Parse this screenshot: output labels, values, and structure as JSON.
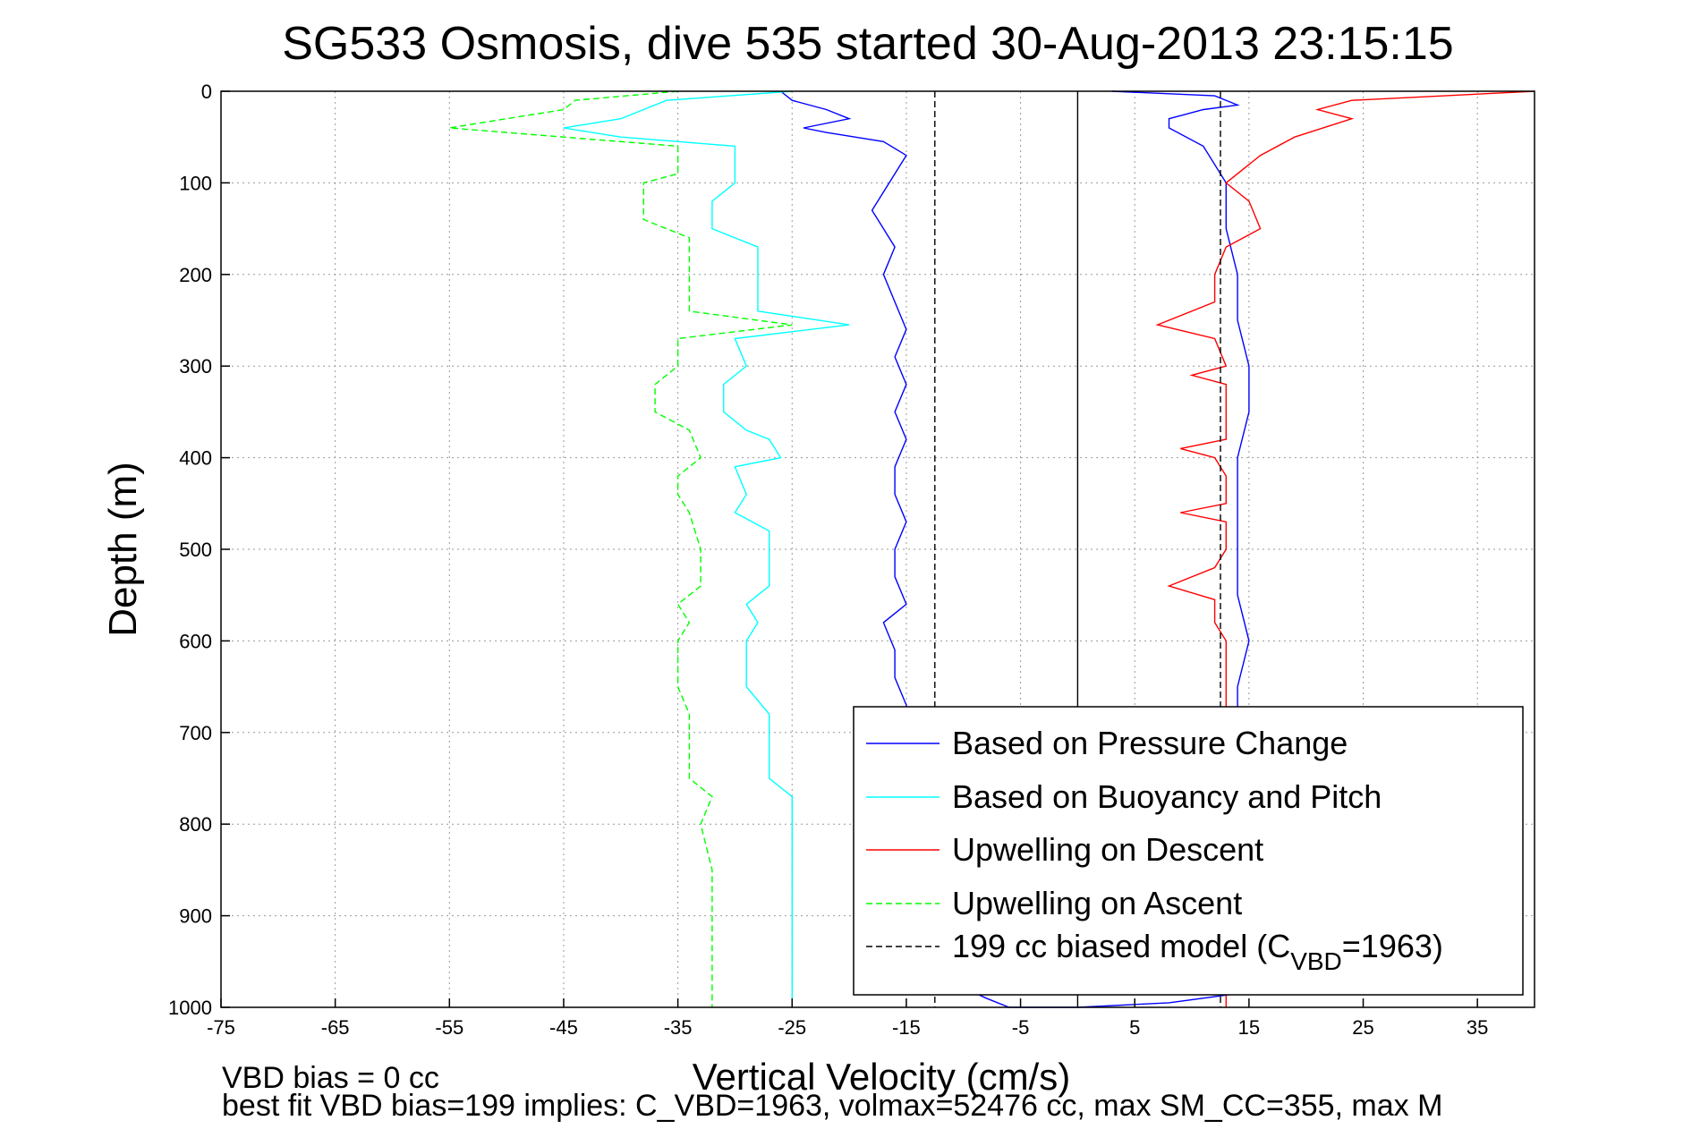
{
  "chart_data": {
    "type": "line",
    "title": "SG533 Osmosis, dive 535 started 30-Aug-2013 23:15:15",
    "xlabel": "Vertical Velocity (cm/s)",
    "ylabel": "Depth (m)",
    "xlim": [
      -75,
      40
    ],
    "ylim": [
      0,
      1000
    ],
    "y_reversed": true,
    "grid": true,
    "xticks": [
      -75,
      -65,
      -55,
      -45,
      -35,
      -25,
      -15,
      -5,
      5,
      15,
      25,
      35
    ],
    "yticks": [
      0,
      100,
      200,
      300,
      400,
      500,
      600,
      700,
      800,
      900,
      1000
    ],
    "legend_position": "bottom-right",
    "series": [
      {
        "name": "Based on Pressure Change",
        "color": "#0000ff",
        "dash": "solid",
        "points": [
          [
            -26,
            0
          ],
          [
            -25,
            10
          ],
          [
            -22,
            20
          ],
          [
            -20,
            30
          ],
          [
            -24,
            40
          ],
          [
            -22,
            45
          ],
          [
            -17,
            55
          ],
          [
            -15,
            70
          ],
          [
            -16,
            90
          ],
          [
            -17,
            110
          ],
          [
            -18,
            130
          ],
          [
            -17,
            150
          ],
          [
            -16,
            170
          ],
          [
            -17,
            200
          ],
          [
            -16,
            230
          ],
          [
            -15,
            260
          ],
          [
            -16,
            290
          ],
          [
            -15,
            320
          ],
          [
            -16,
            350
          ],
          [
            -15,
            380
          ],
          [
            -16,
            410
          ],
          [
            -16,
            440
          ],
          [
            -15,
            470
          ],
          [
            -16,
            500
          ],
          [
            -16,
            530
          ],
          [
            -15,
            560
          ],
          [
            -17,
            580
          ],
          [
            -16,
            610
          ],
          [
            -16,
            640
          ],
          [
            -15,
            670
          ],
          [
            -15,
            700
          ],
          [
            -15,
            750
          ],
          [
            -15,
            800
          ],
          [
            -15,
            850
          ],
          [
            -15,
            900
          ],
          [
            -15,
            950
          ],
          [
            -8,
            990
          ],
          [
            -6,
            1000
          ],
          [
            0,
            1000
          ],
          [
            8,
            995
          ],
          [
            14,
            985
          ],
          [
            15,
            960
          ],
          [
            15,
            900
          ],
          [
            15,
            850
          ],
          [
            15,
            800
          ],
          [
            14,
            750
          ],
          [
            14,
            700
          ],
          [
            14,
            650
          ],
          [
            15,
            600
          ],
          [
            14,
            550
          ],
          [
            14,
            500
          ],
          [
            14,
            450
          ],
          [
            14,
            400
          ],
          [
            15,
            350
          ],
          [
            15,
            300
          ],
          [
            14,
            250
          ],
          [
            14,
            200
          ],
          [
            13,
            150
          ],
          [
            13,
            100
          ],
          [
            11,
            60
          ],
          [
            8,
            40
          ],
          [
            8,
            30
          ],
          [
            11,
            20
          ],
          [
            14,
            15
          ],
          [
            12,
            5
          ],
          [
            3,
            0
          ]
        ]
      },
      {
        "name": "Based on Buoyancy and Pitch",
        "color": "#00ffff",
        "dash": "solid",
        "points": [
          [
            -25,
            0
          ],
          [
            -36,
            10
          ],
          [
            -38,
            20
          ],
          [
            -40,
            30
          ],
          [
            -45,
            40
          ],
          [
            -40,
            50
          ],
          [
            -30,
            60
          ],
          [
            -30,
            70
          ],
          [
            -30,
            100
          ],
          [
            -32,
            120
          ],
          [
            -32,
            150
          ],
          [
            -28,
            170
          ],
          [
            -28,
            200
          ],
          [
            -28,
            240
          ],
          [
            -20,
            255
          ],
          [
            -30,
            270
          ],
          [
            -29,
            300
          ],
          [
            -31,
            320
          ],
          [
            -31,
            350
          ],
          [
            -29,
            370
          ],
          [
            -27,
            380
          ],
          [
            -26,
            400
          ],
          [
            -30,
            410
          ],
          [
            -29,
            440
          ],
          [
            -30,
            460
          ],
          [
            -27,
            480
          ],
          [
            -27,
            500
          ],
          [
            -27,
            520
          ],
          [
            -27,
            540
          ],
          [
            -29,
            560
          ],
          [
            -28,
            580
          ],
          [
            -29,
            600
          ],
          [
            -29,
            650
          ],
          [
            -27,
            680
          ],
          [
            -27,
            700
          ],
          [
            -27,
            750
          ],
          [
            -25,
            770
          ],
          [
            -25,
            800
          ],
          [
            -25,
            850
          ],
          [
            -25,
            900
          ],
          [
            -25,
            950
          ],
          [
            -25,
            1000
          ]
        ]
      },
      {
        "name": "Upwelling on Descent",
        "color": "#ff0000",
        "dash": "solid",
        "points": [
          [
            40,
            0
          ],
          [
            24,
            10
          ],
          [
            21,
            20
          ],
          [
            24,
            30
          ],
          [
            19,
            50
          ],
          [
            16,
            70
          ],
          [
            13,
            100
          ],
          [
            15,
            120
          ],
          [
            16,
            150
          ],
          [
            13,
            170
          ],
          [
            12,
            200
          ],
          [
            12,
            230
          ],
          [
            7,
            255
          ],
          [
            12,
            270
          ],
          [
            13,
            300
          ],
          [
            10,
            310
          ],
          [
            13,
            320
          ],
          [
            13,
            350
          ],
          [
            13,
            380
          ],
          [
            9,
            390
          ],
          [
            12,
            400
          ],
          [
            13,
            420
          ],
          [
            13,
            450
          ],
          [
            9,
            460
          ],
          [
            13,
            470
          ],
          [
            13,
            500
          ],
          [
            12,
            520
          ],
          [
            8,
            540
          ],
          [
            12,
            555
          ],
          [
            12,
            580
          ],
          [
            13,
            600
          ],
          [
            13,
            650
          ],
          [
            13,
            700
          ],
          [
            13,
            750
          ],
          [
            13,
            800
          ],
          [
            13,
            850
          ],
          [
            13,
            900
          ],
          [
            13,
            950
          ],
          [
            13,
            1000
          ]
        ]
      },
      {
        "name": "Upwelling on Ascent",
        "color": "#00ff00",
        "dash": "dashed",
        "points": [
          [
            -35,
            0
          ],
          [
            -44,
            10
          ],
          [
            -45,
            20
          ],
          [
            -50,
            30
          ],
          [
            -55,
            40
          ],
          [
            -45,
            50
          ],
          [
            -35,
            60
          ],
          [
            -35,
            90
          ],
          [
            -38,
            100
          ],
          [
            -38,
            140
          ],
          [
            -34,
            160
          ],
          [
            -34,
            200
          ],
          [
            -34,
            240
          ],
          [
            -25,
            255
          ],
          [
            -35,
            270
          ],
          [
            -35,
            300
          ],
          [
            -37,
            320
          ],
          [
            -37,
            350
          ],
          [
            -34,
            370
          ],
          [
            -33,
            400
          ],
          [
            -35,
            420
          ],
          [
            -35,
            440
          ],
          [
            -34,
            460
          ],
          [
            -33,
            500
          ],
          [
            -33,
            520
          ],
          [
            -33,
            540
          ],
          [
            -35,
            560
          ],
          [
            -34,
            580
          ],
          [
            -35,
            600
          ],
          [
            -35,
            650
          ],
          [
            -34,
            680
          ],
          [
            -34,
            700
          ],
          [
            -34,
            750
          ],
          [
            -32,
            770
          ],
          [
            -33,
            800
          ],
          [
            -32,
            850
          ],
          [
            -32,
            900
          ],
          [
            -32,
            950
          ],
          [
            -32,
            1000
          ]
        ]
      },
      {
        "name": "199 cc biased model (CVBD=1963)",
        "color": "#000000",
        "dash": "dashed",
        "points": [
          [
            -12.5,
            0
          ],
          [
            -12.5,
            1000
          ]
        ]
      },
      {
        "name": "",
        "color": "#000000",
        "dash": "dashed",
        "points": [
          [
            12.5,
            0
          ],
          [
            12.5,
            1000
          ]
        ]
      },
      {
        "name": "",
        "color": "#000000",
        "dash": "solid",
        "points": [
          [
            0,
            0
          ],
          [
            0,
            1000
          ]
        ]
      }
    ],
    "legend_entries": [
      {
        "label": "Based on Pressure Change",
        "color": "#0000ff",
        "dash": "solid"
      },
      {
        "label": "Based on Buoyancy and Pitch",
        "color": "#00ffff",
        "dash": "solid"
      },
      {
        "label": "Upwelling on Descent",
        "color": "#ff0000",
        "dash": "solid"
      },
      {
        "label": "Upwelling on Ascent",
        "color": "#00ff00",
        "dash": "dashed"
      },
      {
        "label": "199 cc biased model (C",
        "sub": "VBD",
        "suffix": "=1963)",
        "color": "#000000",
        "dash": "dashed"
      }
    ],
    "annotations": [
      "VBD bias = 0 cc",
      "best fit VBD bias=199 implies: C_VBD=1963, volmax=52476 cc, max SM_CC=355, max M"
    ]
  }
}
